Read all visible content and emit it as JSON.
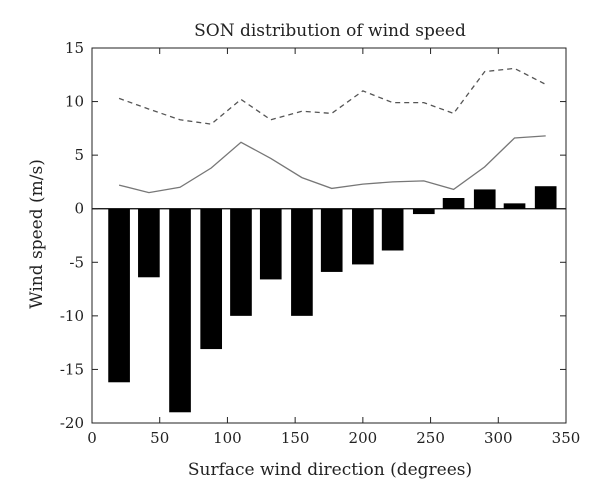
{
  "chart_data": {
    "type": "bar",
    "title": "SON distribution of wind speed",
    "xlabel": "Surface wind direction (degrees)",
    "ylabel": "Wind speed (m/s)",
    "xlim": [
      0,
      350
    ],
    "ylim": [
      -20,
      15
    ],
    "xticks": [
      0,
      50,
      100,
      150,
      200,
      250,
      300,
      350
    ],
    "yticks": [
      -20,
      -15,
      -10,
      -5,
      0,
      5,
      10,
      15
    ],
    "grid": false,
    "bar_width": 16,
    "series": [
      {
        "kind": "bar",
        "color": "#000000",
        "x": [
          20,
          42,
          65,
          88,
          110,
          132,
          155,
          177,
          200,
          222,
          245,
          267,
          290,
          312,
          335
        ],
        "values": [
          -16.2,
          -6.4,
          -19.0,
          -13.1,
          -10.0,
          -6.6,
          -10.0,
          -5.9,
          -5.2,
          -3.9,
          -0.5,
          1.0,
          1.8,
          0.5,
          2.1
        ]
      },
      {
        "kind": "line",
        "style": "solid",
        "color": "#777777",
        "x": [
          20,
          42,
          65,
          88,
          110,
          132,
          155,
          177,
          200,
          222,
          245,
          267,
          290,
          312,
          335
        ],
        "values": [
          2.2,
          1.5,
          2.0,
          3.8,
          6.2,
          4.7,
          2.9,
          1.9,
          2.3,
          2.5,
          2.6,
          1.8,
          3.9,
          6.6,
          6.8
        ]
      },
      {
        "kind": "line",
        "style": "dashed",
        "color": "#555555",
        "x": [
          20,
          42,
          65,
          88,
          110,
          132,
          155,
          177,
          200,
          222,
          245,
          267,
          290,
          312,
          335
        ],
        "values": [
          10.3,
          9.3,
          8.3,
          7.9,
          10.2,
          8.3,
          9.1,
          8.9,
          11.0,
          9.9,
          9.9,
          8.9,
          12.8,
          13.1,
          11.6
        ]
      }
    ]
  }
}
